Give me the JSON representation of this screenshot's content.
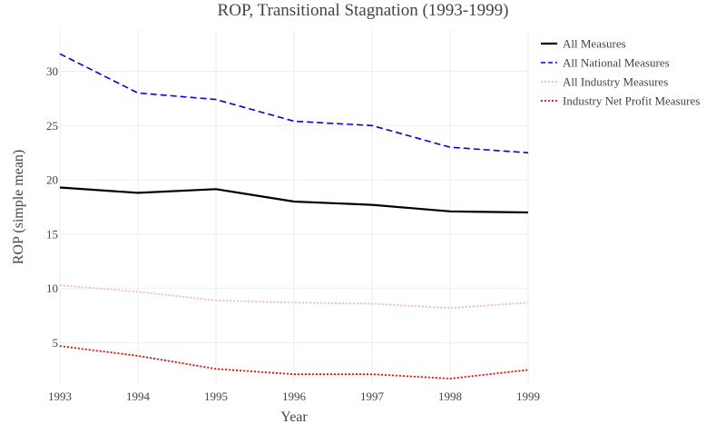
{
  "chart_data": {
    "type": "line",
    "title": "ROP, Transitional Stagnation (1993-1999)",
    "xlabel": "Year",
    "ylabel": "ROP (simple mean)",
    "x": [
      1993,
      1994,
      1995,
      1996,
      1997,
      1998,
      1999
    ],
    "xticks": [
      "1993",
      "1994",
      "1995",
      "1996",
      "1997",
      "1998",
      "1999"
    ],
    "yticks": [
      "5",
      "10",
      "15",
      "20",
      "25",
      "30"
    ],
    "ytick_values": [
      5,
      10,
      15,
      20,
      25,
      30
    ],
    "xlim": [
      1993,
      1999
    ],
    "ylim": [
      1.2,
      33.8
    ],
    "grid": true,
    "legend": "top-right",
    "series": [
      {
        "name": "All Measures",
        "values": [
          19.3,
          18.8,
          19.15,
          18.0,
          17.7,
          17.1,
          17.0
        ],
        "color": "#000000",
        "dash": "solid"
      },
      {
        "name": "All National Measures",
        "values": [
          31.6,
          28.0,
          27.4,
          25.4,
          25.0,
          23.0,
          22.5
        ],
        "color": "#0000ee",
        "dash": "dash"
      },
      {
        "name": "All Industry Measures",
        "values": [
          10.3,
          9.7,
          8.9,
          8.7,
          8.6,
          8.2,
          8.7
        ],
        "color": "#ffb6c1",
        "dash": "dot"
      },
      {
        "name": "Industry Net Profit Measures",
        "values": [
          4.7,
          3.8,
          2.6,
          2.1,
          2.1,
          1.7,
          2.5
        ],
        "color": "#ff0000",
        "dash": "dot"
      }
    ]
  }
}
